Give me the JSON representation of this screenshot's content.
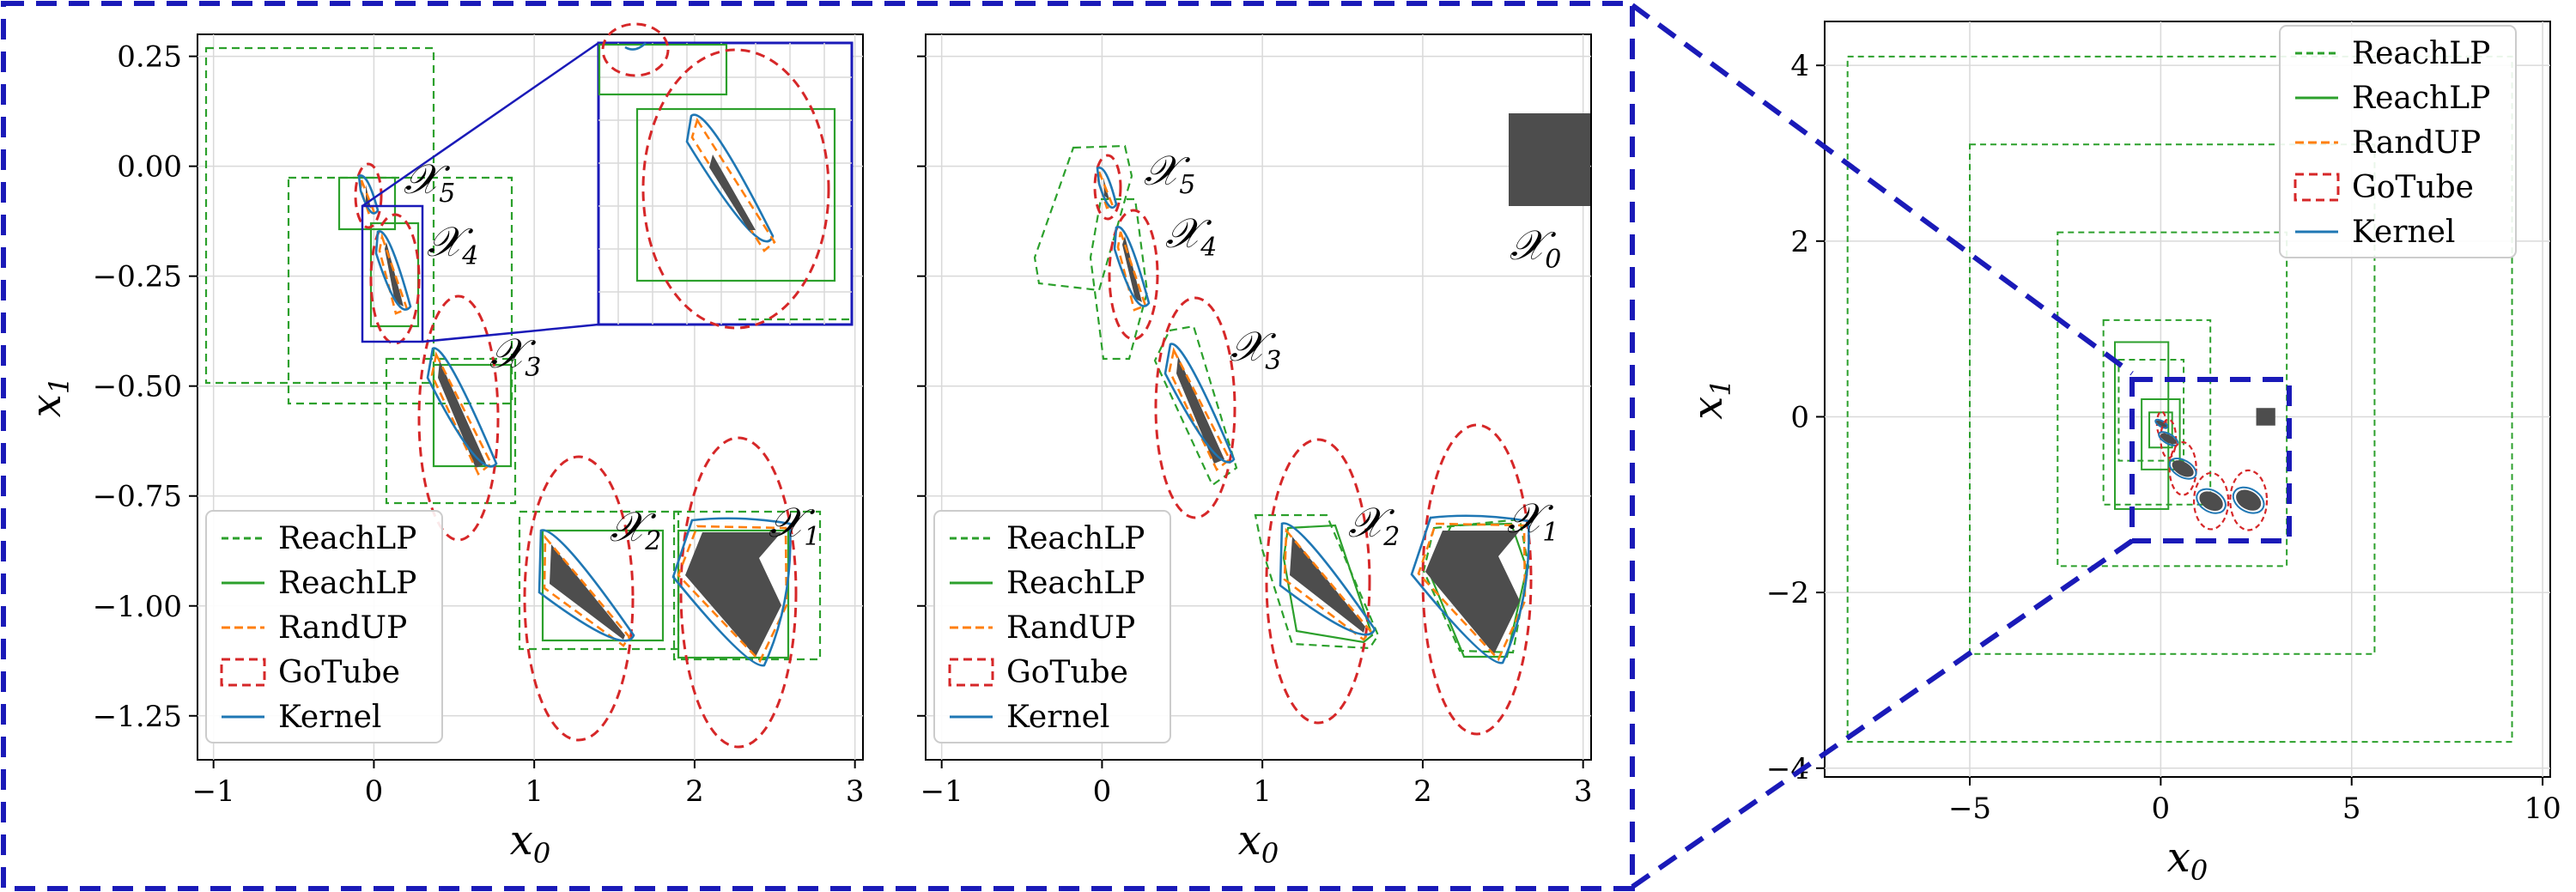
{
  "figure": {
    "zoom_box_color": "#1a1ab8"
  },
  "colors": {
    "reachlp_dashed": "#2ca02c",
    "reachlp_solid": "#2ca02c",
    "randup": "#ff7f0e",
    "gotube": "#d62728",
    "kernel": "#1f77b4",
    "set": "#4d4d4d",
    "grid": "#d9d9d9"
  },
  "legend": {
    "entries": [
      "ReachLP",
      "ReachLP",
      "RandUP",
      "GoTube",
      "Kernel"
    ],
    "placement_left_panels": "lower-left",
    "placement_right_panel": "upper-right"
  },
  "chart_data": [
    {
      "type": "scatter",
      "panel": "left",
      "xlabel": "x0",
      "ylabel": "x1",
      "xlim": [
        -1.1,
        3.05
      ],
      "ylim": [
        -1.35,
        0.3
      ],
      "xticks": [
        "−1",
        "0",
        "1",
        "2",
        "3"
      ],
      "yticks": [
        "0.25",
        "0.00",
        "−0.25",
        "−0.50",
        "−0.75",
        "−1.00",
        "−1.25"
      ],
      "grid": true,
      "set_labels": [
        "X1",
        "X2",
        "X3",
        "X4",
        "X5"
      ],
      "inset": "zoom of X4 and X5",
      "sets": [
        {
          "label": "X1",
          "center": [
            2.3,
            -0.95
          ],
          "gotube_radii": [
            0.37,
            0.34
          ]
        },
        {
          "label": "X2",
          "center": [
            1.32,
            -0.96
          ],
          "gotube_radii": [
            0.35,
            0.33
          ]
        },
        {
          "label": "X3",
          "center": [
            0.58,
            -0.59
          ],
          "gotube_radii": [
            0.2,
            0.17
          ]
        },
        {
          "label": "X4",
          "center": [
            0.2,
            -0.25
          ],
          "gotube_radii": [
            0.1,
            0.12
          ]
        },
        {
          "label": "X5",
          "center": [
            0.02,
            -0.08
          ],
          "gotube_radii": [
            0.06,
            0.07
          ]
        }
      ]
    },
    {
      "type": "scatter",
      "panel": "middle",
      "xlabel": "x0",
      "ylabel": "",
      "xlim": [
        -1.1,
        3.05
      ],
      "ylim": [
        -1.35,
        0.3
      ],
      "xticks": [
        "−1",
        "0",
        "1",
        "2",
        "3"
      ],
      "grid": true,
      "set_labels": [
        "X0",
        "X1",
        "X2",
        "X3",
        "X4",
        "X5"
      ],
      "initial_set": {
        "label": "X0",
        "x": [
          2.5,
          3.0
        ],
        "y": [
          -0.1,
          0.1
        ]
      }
    },
    {
      "type": "scatter",
      "panel": "right",
      "xlabel": "x0",
      "ylabel": "x1",
      "xlim": [
        -8.8,
        10.2
      ],
      "ylim": [
        -4.1,
        4.5
      ],
      "xticks": [
        "−5",
        "0",
        "5",
        "10"
      ],
      "yticks": [
        "4",
        "2",
        "0",
        "−2",
        "−4"
      ],
      "grid": true,
      "reachlp_boxes": [
        {
          "x": [
            -8.2,
            9.2
          ],
          "y": [
            -3.7,
            4.1
          ]
        },
        {
          "x": [
            -5.0,
            5.6
          ],
          "y": [
            -2.7,
            3.1
          ]
        },
        {
          "x": [
            -2.7,
            3.3
          ],
          "y": [
            -1.7,
            2.1
          ]
        },
        {
          "x": [
            -1.5,
            1.3
          ],
          "y": [
            -1.0,
            1.1
          ]
        },
        {
          "x": [
            -1.1,
            0.6
          ],
          "y": [
            -0.5,
            0.65
          ]
        }
      ],
      "zoom_region": {
        "x": [
          -1.1,
          3.05
        ],
        "y": [
          -1.35,
          0.45
        ]
      }
    }
  ]
}
